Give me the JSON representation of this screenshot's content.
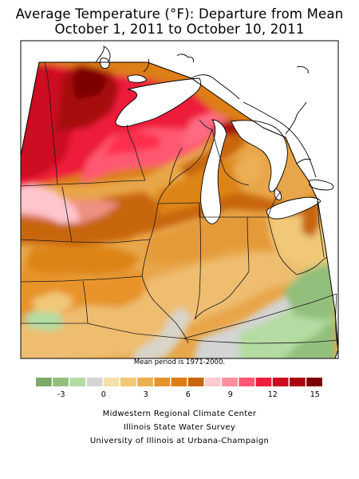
{
  "title": {
    "line1": "Average Temperature (°F): Departure from Mean",
    "line2": "October 1, 2011 to October 10, 2011"
  },
  "mean_note": "Mean period is 1971-2000.",
  "legend": {
    "colors": [
      "#7ea86a",
      "#92c07c",
      "#b3dba2",
      "#d4d4d4",
      "#f4dfa8",
      "#f0c877",
      "#ecaf52",
      "#e8932a",
      "#dd7e12",
      "#c8660b",
      "#ffcad0",
      "#ff8e9e",
      "#ff5872",
      "#ee1c3a",
      "#cc0b20",
      "#a8070f",
      "#7c0200"
    ],
    "tick_labels": [
      "-3",
      "0",
      "3",
      "6",
      "9",
      "12",
      "15"
    ]
  },
  "credits": {
    "line1": "Midwestern Regional Climate Center",
    "line2": "Illinois State Water Survey",
    "line3": "University of Illinois at Urbana-Champaign"
  }
}
